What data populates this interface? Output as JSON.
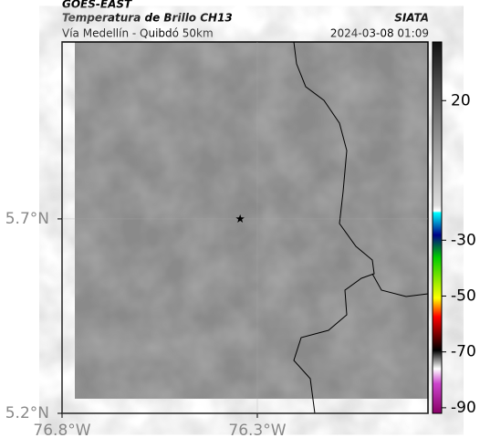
{
  "header": {
    "source": "GOES-EAST",
    "title": "Temperatura de Brillo CH13",
    "subtitle": "Vía Medellín - Quibdó 50km",
    "org": "SIATA",
    "timestamp": "2024-03-08 01:09"
  },
  "map": {
    "xlim": [
      -76.8,
      -75.863
    ],
    "ylim": [
      5.2,
      6.155
    ],
    "xticks": [
      {
        "value": -76.8,
        "label": "76.8°W"
      },
      {
        "value": -76.3,
        "label": "76.3°W"
      }
    ],
    "yticks": [
      {
        "value": 5.7,
        "label": "5.7°N"
      },
      {
        "value": 5.2,
        "label": "5.2°N"
      }
    ],
    "marker": {
      "lon": -76.344,
      "lat": 5.7
    }
  },
  "colorbar": {
    "lim": [
      -92,
      41
    ],
    "ticks": [
      20,
      -30,
      -50,
      -70,
      -90
    ]
  }
}
